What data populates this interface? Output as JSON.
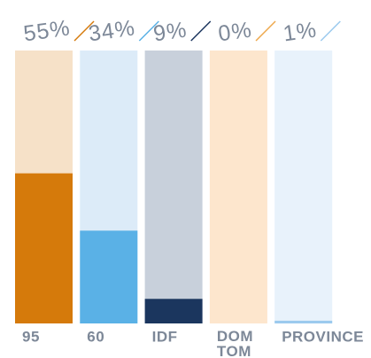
{
  "chart_data": {
    "type": "bar",
    "categories": [
      "95",
      "60",
      "IDF",
      "DOM TOM",
      "PROVINCE"
    ],
    "values": [
      55,
      34,
      9,
      0,
      1
    ],
    "value_labels": [
      "55%",
      "34%",
      "9%",
      "0%",
      "1%"
    ],
    "colors": [
      "#d57a0b",
      "#5ab1e6",
      "#1b365e",
      "#eea84c",
      "#9ccaee"
    ],
    "background_colors": [
      "#f6e1c8",
      "#dcebf8",
      "#c8d0db",
      "#fde6cd",
      "#e8f2fb"
    ],
    "ylim": [
      0,
      100
    ]
  }
}
